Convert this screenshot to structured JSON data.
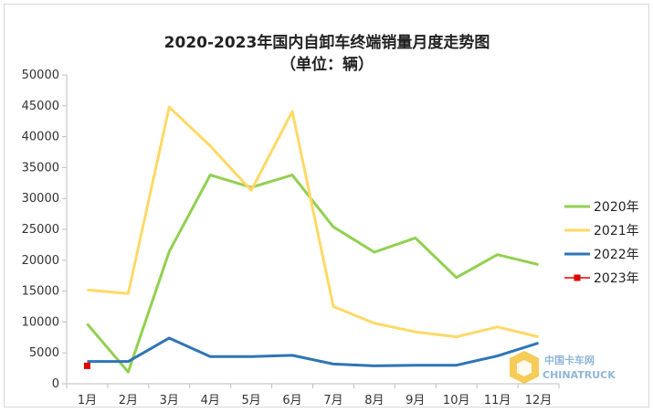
{
  "chart_data": {
    "type": "line",
    "title": "2020-2023年国内自卸车终端销量月度走势图",
    "subtitle": "（单位：辆）",
    "xlabel": "",
    "ylabel": "",
    "categories": [
      "1月",
      "2月",
      "3月",
      "4月",
      "5月",
      "6月",
      "7月",
      "8月",
      "9月",
      "10月",
      "11月",
      "12月"
    ],
    "ylim": [
      0,
      50000
    ],
    "yticks": [
      0,
      5000,
      10000,
      15000,
      20000,
      25000,
      30000,
      35000,
      40000,
      45000,
      50000
    ],
    "grid": false,
    "legend": "right",
    "series": [
      {
        "name": "2020年",
        "color": "#92d050",
        "values": [
          9700,
          1900,
          21400,
          33800,
          31800,
          33800,
          25400,
          21300,
          23600,
          17200,
          20900,
          19300
        ]
      },
      {
        "name": "2021年",
        "color": "#ffd966",
        "values": [
          15200,
          14600,
          44800,
          38500,
          31300,
          44100,
          12500,
          9800,
          8400,
          7600,
          9200,
          7600
        ]
      },
      {
        "name": "2022年",
        "color": "#2e75b6",
        "values": [
          3600,
          3600,
          7400,
          4400,
          4400,
          4600,
          3200,
          2900,
          3000,
          3000,
          4500,
          6600
        ]
      },
      {
        "name": "2023年",
        "color": "#e00000",
        "values": [
          2900,
          null,
          null,
          null,
          null,
          null,
          null,
          null,
          null,
          null,
          null,
          null
        ]
      }
    ]
  },
  "watermark": {
    "cn": "中国卡车网",
    "en": "CHINATRUCK"
  }
}
